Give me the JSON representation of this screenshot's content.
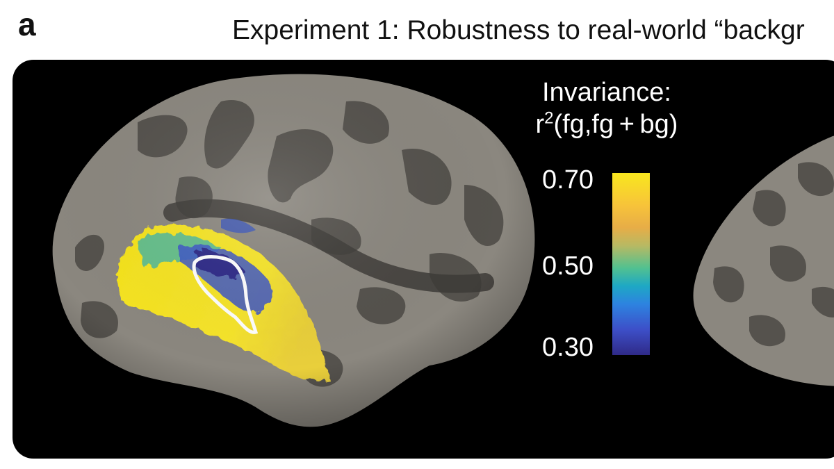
{
  "panel_letter": "a",
  "title": "Experiment 1: Robustness to real-world “backgr",
  "colorbar": {
    "title_line1": "Invariance:",
    "title_line2_pre": "r",
    "title_line2_sup": "2",
    "title_line2_post": "(fg,fg + bg)",
    "max_label": "0.70",
    "mid_label": "0.50",
    "min_label": "0.30",
    "range": [
      0.3,
      0.7
    ],
    "colormap": "parula"
  },
  "colors": {
    "background": "#000000",
    "cortex_light": "#8b877f",
    "cortex_dark": "#55524d",
    "roi_outline": "#ffffff"
  }
}
